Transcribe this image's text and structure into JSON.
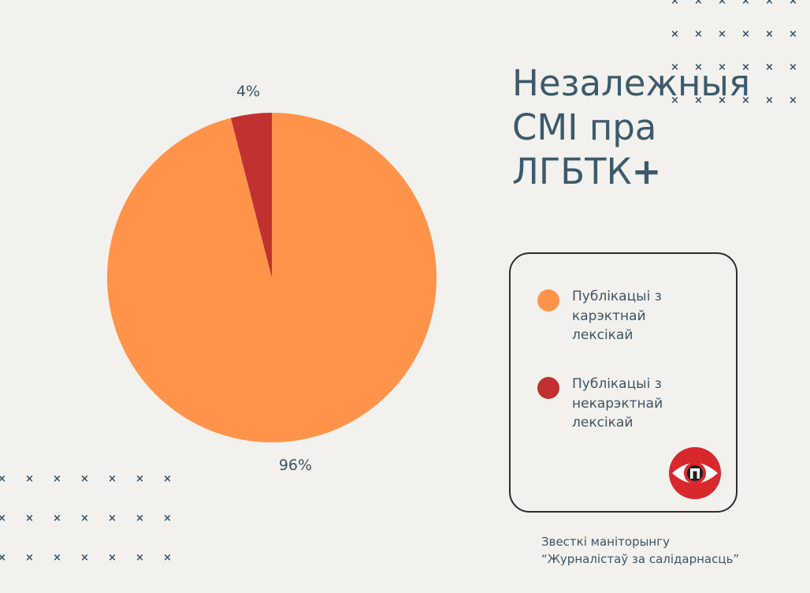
{
  "title_main": "Незалежныя СМІ пра ЛГБТК",
  "title_plus": "+",
  "chart_data": {
    "type": "pie",
    "title": "Незалежныя СМІ пра ЛГБТК+",
    "categories": [
      "Публікацыі з карэктнай лексікай",
      "Публікацыі з некарэктнай лексікай"
    ],
    "values": [
      96,
      4
    ],
    "labels": [
      "96%",
      "4%"
    ],
    "colors": [
      "#ff934a",
      "#c0312f"
    ],
    "legend_position": "right"
  },
  "legend": {
    "items": [
      {
        "label": "Публікацыі з карэктнай лексікай",
        "color": "#ff934a"
      },
      {
        "label": "Публікацыі з некарэктнай лексікай",
        "color": "#c0312f"
      }
    ]
  },
  "source": {
    "line1": "Звесткі маніторынгу",
    "line2": "“Журналістаў за салідарнасць”"
  },
  "colors": {
    "background": "#f3f1ed",
    "text": "#3b5566",
    "logo_red": "#d9272e"
  }
}
